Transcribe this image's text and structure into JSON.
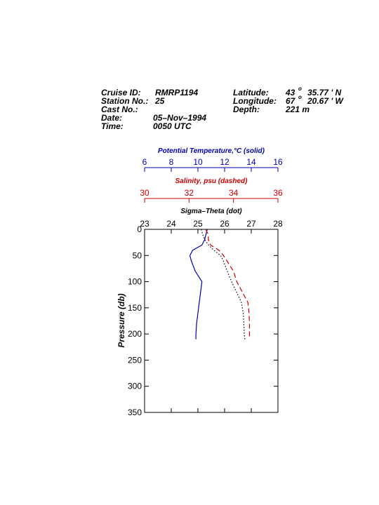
{
  "header": {
    "cruise_label": "Cruise ID:",
    "cruise": "RMRP1194",
    "station_label": "Station No.:",
    "station": "25",
    "cast_label": "Cast No.:",
    "date_label": "Date:",
    "date": "05–Nov–1994",
    "time_label": "Time:",
    "time": "0050 UTC",
    "lat_label": "Latitude:",
    "lat_deg": "43",
    "lat_min": "35.77 ' N",
    "lon_label": "Longitude:",
    "lon_deg": "67",
    "lon_min": "20.67 ' W",
    "degree_mark": "o",
    "depth_label": "Depth:",
    "depth": "221 m"
  },
  "chart_data": {
    "type": "line",
    "y_label": "Pressure (db)",
    "ylim": [
      0,
      350
    ],
    "yticks": [
      0,
      50,
      100,
      150,
      200,
      250,
      300,
      350
    ],
    "pressure": [
      0,
      10,
      20,
      30,
      40,
      50,
      60,
      80,
      100,
      120,
      140,
      160,
      180,
      200,
      210
    ],
    "series": [
      {
        "name": "Potential Temperature,°C (solid)",
        "color": "#0000b0",
        "dash": "solid",
        "xlim": [
          6,
          16
        ],
        "xticks": [
          6,
          8,
          10,
          12,
          14,
          16
        ],
        "values": [
          10.7,
          10.6,
          10.5,
          10.3,
          9.6,
          9.4,
          9.5,
          9.8,
          10.3,
          10.2,
          10.1,
          10.0,
          9.9,
          9.85,
          9.85
        ]
      },
      {
        "name": "Salinity, psu  (dashed)",
        "color": "#cc0000",
        "dash": "dashed",
        "xlim": [
          30,
          36
        ],
        "xticks": [
          30,
          32,
          34,
          36
        ],
        "values": [
          32.75,
          32.87,
          32.87,
          32.97,
          33.35,
          33.55,
          33.7,
          34.0,
          34.15,
          34.4,
          34.65,
          34.7,
          34.72,
          34.72,
          34.72
        ]
      },
      {
        "name": "Sigma–Theta (dot)",
        "color": "#000000",
        "dash": "dotted",
        "xlim": [
          23,
          28
        ],
        "xticks": [
          23,
          24,
          25,
          26,
          27,
          28
        ],
        "values": [
          25.13,
          25.18,
          25.26,
          25.4,
          25.6,
          25.85,
          25.95,
          26.1,
          26.26,
          26.45,
          26.63,
          26.7,
          26.72,
          26.74,
          26.76
        ]
      }
    ]
  }
}
